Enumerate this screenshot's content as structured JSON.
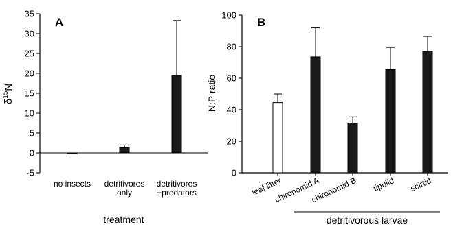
{
  "chart_data": [
    {
      "panel_label": "A",
      "type": "bar",
      "categories": [
        [
          "no insects"
        ],
        [
          "detritivores",
          "only"
        ],
        [
          "detritivores",
          "+predators"
        ]
      ],
      "values": [
        -0.2,
        1.3,
        19.5
      ],
      "error_upper": [
        0.0,
        0.7,
        13.8
      ],
      "fills": [
        "#1a1a1a",
        "#1a1a1a",
        "#1a1a1a"
      ],
      "ylabel": "δ15N",
      "ylabel_base": "δ",
      "ylabel_sup": "15",
      "ylabel_main": "N",
      "xlabel": "treatment",
      "ylim": [
        -5,
        35
      ],
      "yticks": [
        -5,
        0,
        5,
        10,
        15,
        20,
        25,
        30,
        35
      ],
      "zero_line": true
    },
    {
      "panel_label": "B",
      "type": "bar",
      "categories": [
        "leaf litter",
        "chironomid A",
        "chironomid B",
        "tipulid",
        "scirtid"
      ],
      "values": [
        44.5,
        73.5,
        31.5,
        65.5,
        77
      ],
      "error_upper": [
        5.5,
        18.5,
        4,
        14,
        9.5
      ],
      "fills": [
        "#ffffff",
        "#1a1a1a",
        "#1a1a1a",
        "#1a1a1a",
        "#1a1a1a"
      ],
      "ylabel": "N:P ratio",
      "group_label": "detritivorous larvae",
      "ylim": [
        0,
        100
      ],
      "yticks": [
        0,
        20,
        40,
        60,
        80,
        100
      ]
    }
  ]
}
